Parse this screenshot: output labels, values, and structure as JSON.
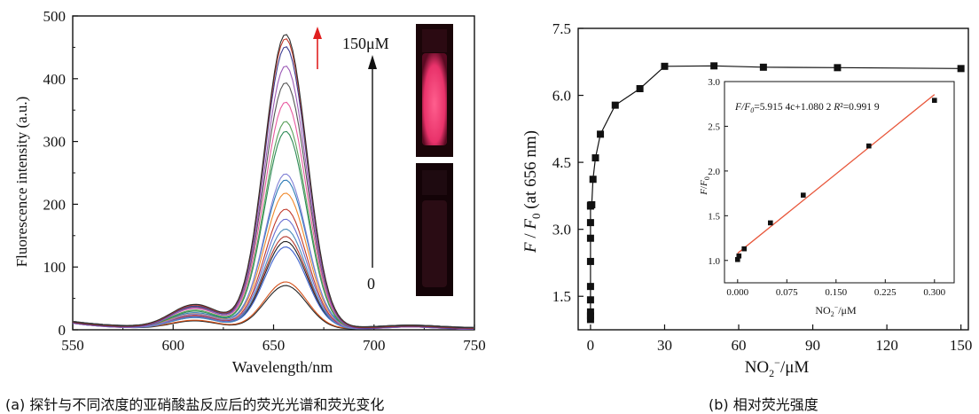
{
  "captions": {
    "a": "(a) 探针与不同浓度的亚硝酸盐反应后的荧光光谱和荧光变化",
    "b": "(b) 相对荧光强度"
  },
  "chart_data": [
    {
      "id": "spectra",
      "type": "line",
      "title": "",
      "xlabel": "Wavelength/nm",
      "ylabel": "Fluorescence intensity (a.u.)",
      "xlim": [
        550,
        750
      ],
      "ylim": [
        0,
        500
      ],
      "xticks": [
        550,
        600,
        650,
        700,
        750
      ],
      "yticks": [
        0,
        100,
        200,
        300,
        400,
        500
      ],
      "peak_wavelength": 656,
      "side_band_wavelength": 611,
      "annotations": {
        "top": "150μM",
        "bottom": "0"
      },
      "series_peaks": [
        70,
        75,
        130,
        138,
        145,
        160,
        175,
        190,
        215,
        235,
        248,
        315,
        330,
        360,
        390,
        420,
        450,
        462,
        468
      ],
      "series_colors": [
        "#222222",
        "#d4511a",
        "#3a5fcd",
        "#222222",
        "#b3382c",
        "#4a8ab8",
        "#6b6fd1",
        "#c0392b",
        "#f08a2c",
        "#2c7bb6",
        "#7f7fd5",
        "#2e8b57",
        "#5aa05a",
        "#e85aa0",
        "#555555",
        "#9b59b6",
        "#3b3b8f",
        "#c0392b",
        "#2f2f2f"
      ],
      "arrow_colors": {
        "increase": "#e02020",
        "scale": "#111111"
      },
      "vials": [
        {
          "state": "fluorescent",
          "color": "#e8326a"
        },
        {
          "state": "dark",
          "color": "#2a0c14"
        }
      ]
    },
    {
      "id": "relative",
      "type": "line",
      "title": "",
      "xlabel": "NO2−/μM",
      "ylabel": "F / F0 (at 656 nm)",
      "xlim": [
        -5,
        153
      ],
      "ylim": [
        0.75,
        7.5
      ],
      "xticks": [
        0,
        30,
        60,
        90,
        120,
        150
      ],
      "yticks": [
        1.5,
        3.0,
        4.5,
        6.0,
        7.5
      ],
      "x": [
        0,
        0,
        0,
        0,
        0,
        0,
        0,
        0,
        0,
        0,
        0.5,
        1,
        2,
        4,
        10,
        20,
        30,
        50,
        70,
        100,
        150
      ],
      "y": [
        0.98,
        1.06,
        1.15,
        1.42,
        1.72,
        2.28,
        2.8,
        3.15,
        3.52,
        3.54,
        3.55,
        4.12,
        4.6,
        5.13,
        5.78,
        6.15,
        6.65,
        6.66,
        6.63,
        6.62,
        6.6
      ],
      "inset": {
        "type": "scatter",
        "xlabel": "NO2−/μM",
        "ylabel": "F/F0",
        "xlim": [
          -0.02,
          0.33
        ],
        "ylim": [
          0.75,
          3.0
        ],
        "xticks": [
          0.0,
          0.075,
          0.15,
          0.225,
          0.3
        ],
        "xtick_labels": [
          "0.000",
          "0.075",
          "0.150",
          "0.225",
          "0.300"
        ],
        "yticks": [
          1.0,
          1.5,
          2.0,
          2.5,
          3.0
        ],
        "ytick_labels": [
          "1.0",
          "1.5",
          "2.0",
          "2.5",
          "3.0"
        ],
        "x": [
          0.0,
          0.002,
          0.01,
          0.05,
          0.1,
          0.2,
          0.3
        ],
        "y": [
          1.01,
          1.05,
          1.13,
          1.42,
          1.73,
          2.28,
          2.79
        ],
        "fit": {
          "slope": 5.9154,
          "intercept": 1.0802,
          "color": "#e8563a"
        },
        "equation": "F/F0=5.915 4c+1.080 2  R²=0.991 9"
      }
    }
  ]
}
